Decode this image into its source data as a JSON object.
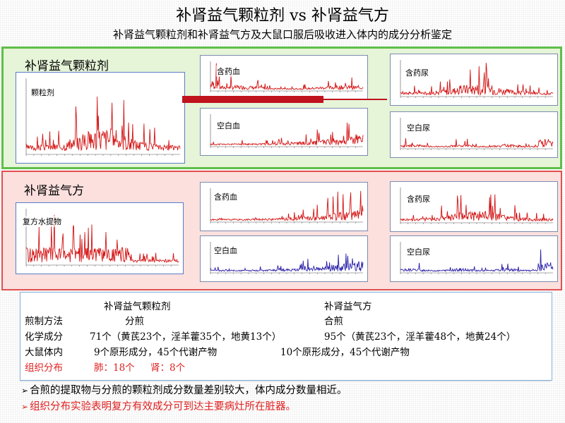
{
  "title": "补肾益气颗粒剂 vs 补肾益气方",
  "subtitle": "补肾益气颗粒剂和补肾益气方及大鼠口服后吸收进入体内的成分分析鉴定",
  "section_granule": {
    "label": "补肾益气颗粒剂",
    "main_chart_label": "颗粒剂",
    "serum_label": "含药血",
    "blank_serum_label": "空白血",
    "urine_label": "含药尿",
    "blank_urine_label": "空白尿"
  },
  "section_decoction": {
    "label": "补肾益气方",
    "main_chart_label": "复方水提物",
    "serum_label": "含药血",
    "blank_serum_label": "空白血",
    "urine_label": "含药尿",
    "blank_urine_label": "空白尿"
  },
  "table": {
    "header_granule": "补肾益气颗粒剂",
    "header_decoction": "补肾益气方",
    "rows": [
      {
        "label": "煎制方法",
        "granule": "分煎",
        "decoction": "合煎"
      },
      {
        "label": "化学成分",
        "granule": "71个（黄芪23个，淫羊藿35个，地黄13个）",
        "decoction": "95个（黄芪23个，淫羊藿48个，地黄24个）"
      },
      {
        "label": "大鼠体内",
        "granule": "9个原形成分，45个代谢产物",
        "decoction": "10个原形成分，45个代谢产物"
      }
    ],
    "tissue_label": "组织分布",
    "tissue_lung": "肺：18个",
    "tissue_kidney": "肾：8个"
  },
  "bullets": [
    "合煎的提取物与分煎的颗粒剂成分数量差别较大，体内成分数量相近。",
    "组织分布实验表明复方有效成分可到达主要病灶所在脏器。"
  ],
  "colors": {
    "red_trace": "#d41414",
    "blue_trace": "#2a1fa8",
    "highlight": "#e02020"
  },
  "bullet_icon": "arrow-right-icon"
}
